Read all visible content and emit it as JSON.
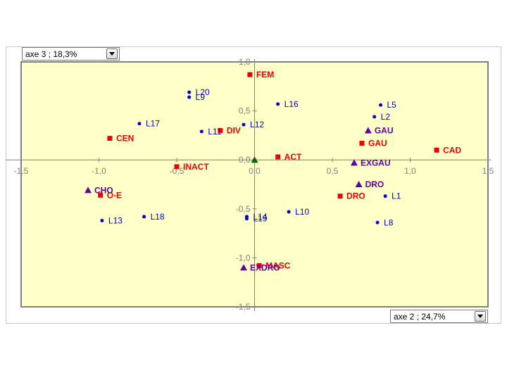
{
  "chart_data": {
    "type": "scatter",
    "xlim": [
      -1.5,
      1.5
    ],
    "ylim": [
      -1.5,
      1.0
    ],
    "x_ticks": [
      -1.5,
      -1,
      -0.5,
      0,
      0.5,
      1,
      1.5
    ],
    "y_ticks": [
      1,
      0.5,
      0,
      -0.5,
      -1,
      -1.5
    ],
    "x_tick_labels": [
      "-1,5",
      "-1,0",
      "-0,5",
      "0,0",
      "0,5",
      "1,0",
      "1,5"
    ],
    "y_tick_labels": [
      "1,0",
      "0,5",
      "0,0",
      "-0,5",
      "-1,0",
      "-1,5"
    ],
    "grid": false,
    "x_selector_label": "axe 2 ; 24,7%",
    "y_selector_label": "axe 3 ; 18,3%",
    "colors": {
      "plot_bg": "#ffffc8",
      "blue": "#0000cc",
      "red": "#ee0000",
      "purple": "#660099",
      "green": "#006600"
    },
    "series": [
      {
        "marker": "circle",
        "color": "#0000cc",
        "points": [
          {
            "label": "L1",
            "x": 0.84,
            "y": -0.37
          },
          {
            "label": "L2",
            "x": 0.77,
            "y": 0.44
          },
          {
            "label": "L5",
            "x": 0.81,
            "y": 0.56
          },
          {
            "label": "L8",
            "x": 0.79,
            "y": -0.64
          },
          {
            "label": "L9",
            "x": -0.42,
            "y": 0.64
          },
          {
            "label": "L10",
            "x": 0.22,
            "y": -0.53
          },
          {
            "label": "L11",
            "x": -0.34,
            "y": 0.29
          },
          {
            "label": "L12",
            "x": -0.07,
            "y": 0.36
          },
          {
            "label": "L13",
            "x": -0.98,
            "y": -0.62
          },
          {
            "label": "L14",
            "x": -0.05,
            "y": -0.58
          },
          {
            "label": "L16",
            "x": 0.15,
            "y": 0.57
          },
          {
            "label": "L17",
            "x": -0.74,
            "y": 0.37
          },
          {
            "label": "L18",
            "x": -0.71,
            "y": -0.58
          },
          {
            "label": "L19",
            "x": -0.05,
            "y": -0.6
          },
          {
            "label": "L20",
            "x": -0.42,
            "y": 0.69
          }
        ]
      },
      {
        "marker": "square",
        "color": "#ee0000",
        "points": [
          {
            "label": "FEM",
            "x": -0.03,
            "y": 0.87
          },
          {
            "label": "CEN",
            "x": -0.93,
            "y": 0.22
          },
          {
            "label": "DIV",
            "x": -0.22,
            "y": 0.3
          },
          {
            "label": "ACT",
            "x": 0.15,
            "y": 0.03
          },
          {
            "label": "INACT",
            "x": -0.5,
            "y": -0.07
          },
          {
            "label": "GAU",
            "x": 0.69,
            "y": 0.17
          },
          {
            "label": "CAD",
            "x": 1.17,
            "y": 0.1
          },
          {
            "label": "O-E",
            "x": -0.99,
            "y": -0.36
          },
          {
            "label": "DRO",
            "x": 0.55,
            "y": -0.37
          },
          {
            "label": "MASC",
            "x": 0.03,
            "y": -1.08
          }
        ]
      },
      {
        "marker": "triangle",
        "color": "#660099",
        "points": [
          {
            "label": "CHO",
            "x": -1.07,
            "y": -0.31
          },
          {
            "label": "GAU",
            "x": 0.73,
            "y": 0.3
          },
          {
            "label": "EXGAU",
            "x": 0.64,
            "y": -0.03
          },
          {
            "label": "DRO",
            "x": 0.67,
            "y": -0.25
          },
          {
            "label": "EXDRO",
            "x": -0.07,
            "y": -1.1
          }
        ]
      },
      {
        "marker": "triangle",
        "color": "#006600",
        "points": [
          {
            "label": "",
            "x": 0.0,
            "y": 0.0
          }
        ]
      }
    ]
  }
}
